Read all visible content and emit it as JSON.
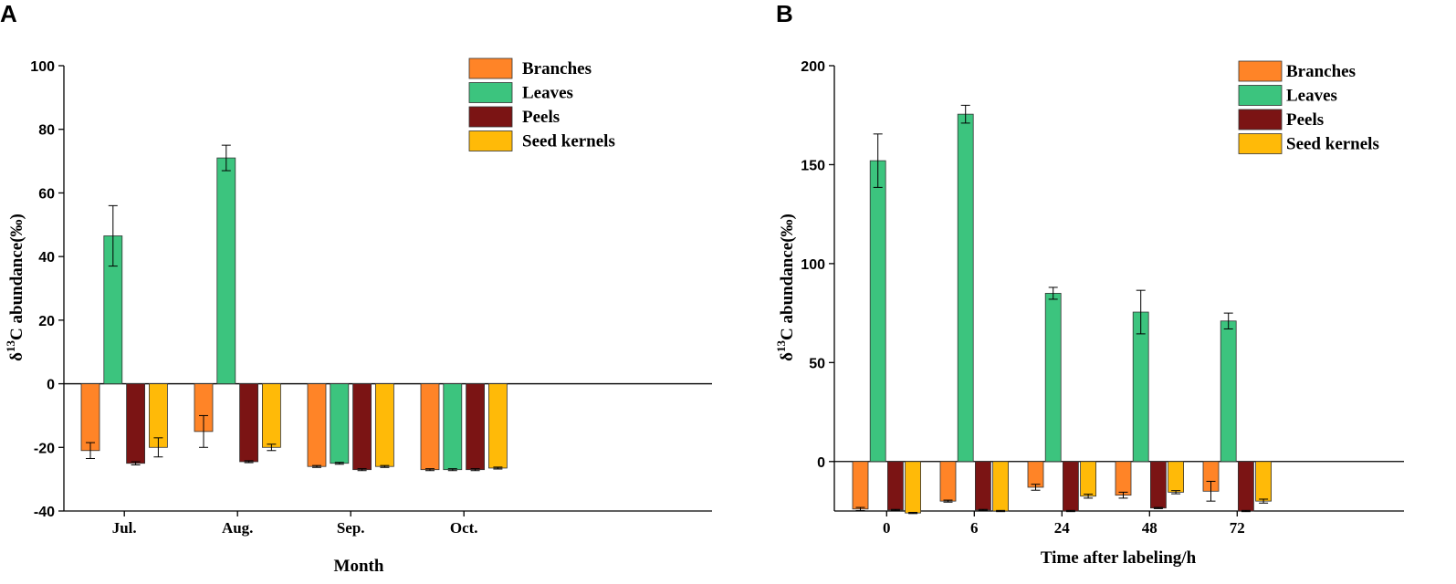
{
  "chart_data": [
    {
      "panel": "A",
      "type": "bar",
      "xlabel": "Month",
      "ylabel_prefix": "δ",
      "ylabel_sup": "13",
      "ylabel_rest": "C abundance(‰)",
      "ylim": [
        -40,
        100
      ],
      "yticks": [
        -40,
        -20,
        0,
        20,
        40,
        60,
        80,
        100
      ],
      "categories": [
        "Jul.",
        "Aug.",
        "Sep.",
        "Oct."
      ],
      "series": [
        {
          "name": "Branches",
          "color": "#FF8427",
          "values": [
            -21,
            -15,
            -26,
            -27
          ],
          "errors": [
            2.5,
            5,
            0.3,
            0.3
          ]
        },
        {
          "name": "Leaves",
          "color": "#3CC47E",
          "values": [
            46.5,
            71,
            -25,
            -27
          ],
          "errors": [
            9.5,
            4,
            0.3,
            0.3
          ]
        },
        {
          "name": "Peels",
          "color": "#7B1414",
          "values": [
            -25,
            -24.5,
            -27,
            -27
          ],
          "errors": [
            0.5,
            0.3,
            0.3,
            0.3
          ]
        },
        {
          "name": "Seed kernels",
          "color": "#FFBA08",
          "values": [
            -20,
            -20,
            -26,
            -26.5
          ],
          "errors": [
            3,
            1,
            0.3,
            0.3
          ]
        }
      ]
    },
    {
      "panel": "B",
      "type": "bar",
      "xlabel": "Time after labeling/h",
      "ylabel_prefix": "δ",
      "ylabel_sup": "13",
      "ylabel_rest": "C abundance(‰)",
      "ylim": [
        -25,
        200
      ],
      "yticks": [
        0,
        50,
        100,
        150,
        200
      ],
      "categories": [
        "0",
        "6",
        "24",
        "48",
        "72"
      ],
      "series": [
        {
          "name": "Branches",
          "color": "#FF8427",
          "values": [
            -24,
            -20,
            -13,
            -17,
            -15
          ],
          "errors": [
            0.8,
            0.5,
            1.5,
            1.5,
            5
          ]
        },
        {
          "name": "Leaves",
          "color": "#3CC47E",
          "values": [
            152,
            175.5,
            85,
            75.5,
            71
          ],
          "errors": [
            13.5,
            4.5,
            3,
            11,
            4
          ]
        },
        {
          "name": "Peels",
          "color": "#7B1414",
          "values": [
            -24.5,
            -24.5,
            -25,
            -23.5,
            -25
          ],
          "errors": [
            0.3,
            0.3,
            0.3,
            0.3,
            0.3
          ]
        },
        {
          "name": "Seed kernels",
          "color": "#FFBA08",
          "values": [
            -26,
            -25,
            -17.5,
            -15.5,
            -20
          ],
          "errors": [
            0.3,
            0.3,
            1,
            0.8,
            1
          ]
        }
      ]
    }
  ]
}
